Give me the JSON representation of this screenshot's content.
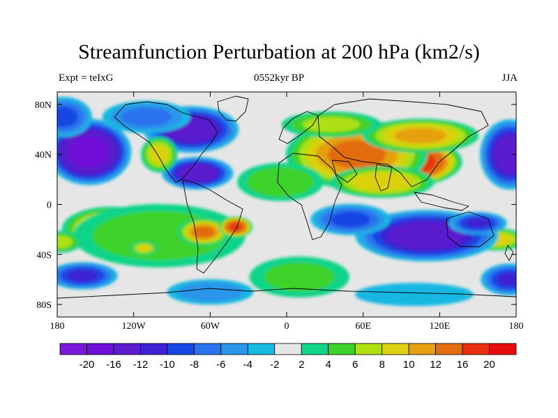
{
  "title": "Streamfunction Perturbation at 200 hPa (km2/s)",
  "left_label": "Expt = teIxG",
  "center_label": "0552kyr BP",
  "right_label": "JJA",
  "map": {
    "projection": "cylindrical-equidistant",
    "lon_range": [
      -180,
      180
    ],
    "lat_range": [
      -90,
      90
    ],
    "lat_ticks": [
      {
        "value": 80,
        "label": "80N"
      },
      {
        "value": 40,
        "label": "40N"
      },
      {
        "value": 0,
        "label": "0"
      },
      {
        "value": -40,
        "label": "40S"
      },
      {
        "value": -80,
        "label": "80S"
      }
    ],
    "lon_ticks": [
      {
        "value": -180,
        "label": "180"
      },
      {
        "value": -120,
        "label": "120W"
      },
      {
        "value": -60,
        "label": "60W"
      },
      {
        "value": 0,
        "label": "0"
      },
      {
        "value": 60,
        "label": "60E"
      },
      {
        "value": 120,
        "label": "120E"
      },
      {
        "value": 180,
        "label": "180"
      }
    ],
    "background_color": "#e6e6e6",
    "coastline_color": "#000000"
  },
  "colorbar": {
    "colors": [
      "#7a16d8",
      "#6f10d8",
      "#5a1ccc",
      "#3c22d4",
      "#1846e2",
      "#2a72ee",
      "#2a96ea",
      "#18b8e2",
      "#e6e6e6",
      "#10d488",
      "#3cd22a",
      "#aee012",
      "#dcd010",
      "#e4a010",
      "#e26c0e",
      "#e8300c",
      "#e40c0c"
    ],
    "labels": [
      "-20",
      "-16",
      "-12",
      "-10",
      "-8",
      "-6",
      "-4",
      "-2",
      "2",
      "4",
      "6",
      "8",
      "10",
      "12",
      "16",
      "20"
    ]
  },
  "anomalies": [
    {
      "lon": 85,
      "lat": 34,
      "rx": 55,
      "ry": 22,
      "value": 22
    },
    {
      "lon": 55,
      "lat": 40,
      "rx": 60,
      "ry": 30,
      "value": 12
    },
    {
      "lon": 105,
      "lat": 55,
      "rx": 50,
      "ry": 15,
      "value": 10
    },
    {
      "lon": 35,
      "lat": 64,
      "rx": 45,
      "ry": 12,
      "value": 6
    },
    {
      "lon": 75,
      "lat": 18,
      "rx": 45,
      "ry": 14,
      "value": 9
    },
    {
      "lon": -2,
      "lat": 18,
      "rx": 14,
      "ry": 10,
      "value": 10
    },
    {
      "lon": -5,
      "lat": 18,
      "rx": 40,
      "ry": 18,
      "value": 5
    },
    {
      "lon": -138,
      "lat": -20,
      "rx": 42,
      "ry": 20,
      "value": 10
    },
    {
      "lon": -100,
      "lat": -25,
      "rx": 80,
      "ry": 30,
      "value": 5
    },
    {
      "lon": -65,
      "lat": -22,
      "rx": 22,
      "ry": 12,
      "value": 12
    },
    {
      "lon": -40,
      "lat": -18,
      "rx": 14,
      "ry": 9,
      "value": 16
    },
    {
      "lon": 5,
      "lat": -56,
      "rx": 22,
      "ry": 8,
      "value": 8
    },
    {
      "lon": 10,
      "lat": -58,
      "rx": 48,
      "ry": 20,
      "value": 4
    },
    {
      "lon": 165,
      "lat": -28,
      "rx": 25,
      "ry": 10,
      "value": 8
    },
    {
      "lon": -178,
      "lat": -30,
      "rx": 20,
      "ry": 10,
      "value": 6
    },
    {
      "lon": -112,
      "lat": -35,
      "rx": 12,
      "ry": 6,
      "value": 8
    },
    {
      "lon": -155,
      "lat": 42,
      "rx": 35,
      "ry": 28,
      "value": -18
    },
    {
      "lon": -175,
      "lat": 70,
      "rx": 25,
      "ry": 18,
      "value": -8
    },
    {
      "lon": -75,
      "lat": 60,
      "rx": 40,
      "ry": 20,
      "value": -14
    },
    {
      "lon": -70,
      "lat": 25,
      "rx": 30,
      "ry": 14,
      "value": -14
    },
    {
      "lon": -110,
      "lat": 70,
      "rx": 40,
      "ry": 15,
      "value": -6
    },
    {
      "lon": -100,
      "lat": 40,
      "rx": 16,
      "ry": 16,
      "value": 8
    },
    {
      "lon": 175,
      "lat": 40,
      "rx": 25,
      "ry": 30,
      "value": -14
    },
    {
      "lon": 110,
      "lat": -25,
      "rx": 60,
      "ry": 22,
      "value": -14
    },
    {
      "lon": 150,
      "lat": -15,
      "rx": 25,
      "ry": 10,
      "value": -10
    },
    {
      "lon": 50,
      "lat": -12,
      "rx": 35,
      "ry": 14,
      "value": -8
    },
    {
      "lon": -160,
      "lat": -57,
      "rx": 30,
      "ry": 12,
      "value": -10
    },
    {
      "lon": 175,
      "lat": -60,
      "rx": 25,
      "ry": 14,
      "value": -10
    },
    {
      "lon": -60,
      "lat": -70,
      "rx": 40,
      "ry": 12,
      "value": -5
    },
    {
      "lon": 100,
      "lat": -72,
      "rx": 60,
      "ry": 12,
      "value": -3
    }
  ]
}
